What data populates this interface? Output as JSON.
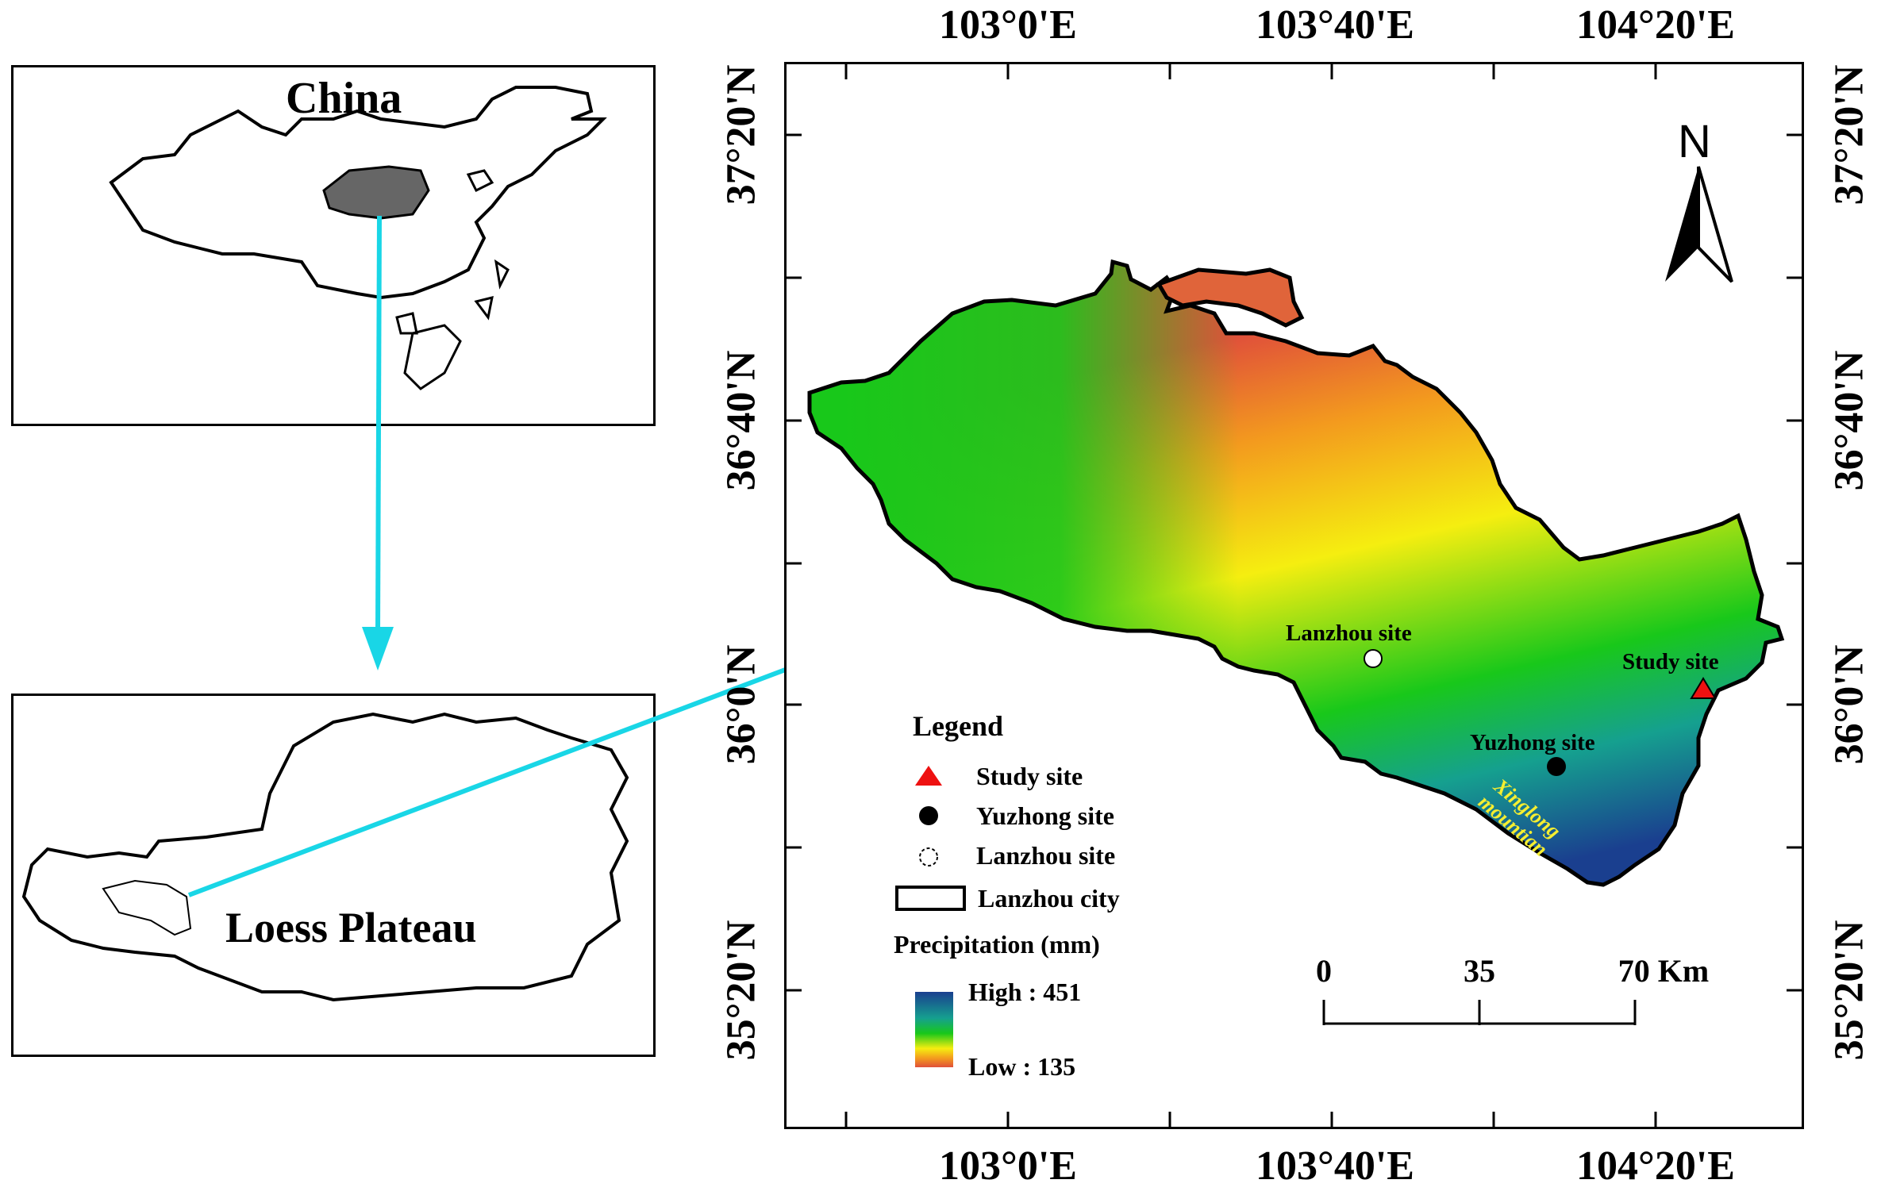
{
  "inset_china": {
    "title": "China"
  },
  "inset_loess": {
    "title": "Loess Plateau"
  },
  "main_map": {
    "lon_labels": [
      "103°0'E",
      "103°40'E",
      "104°20'E"
    ],
    "lat_labels": [
      "37°20'N",
      "36°40'N",
      "36°0'N",
      "35°20'N"
    ],
    "north_arrow": "N",
    "sites": {
      "lanzhou": "Lanzhou site",
      "study": "Study site",
      "yuzhong": "Yuzhong site"
    },
    "mountain_label": "Xinglong mountian"
  },
  "legend": {
    "title": "Legend",
    "items": [
      "Study site",
      "Yuzhong site",
      "Lanzhou site",
      "Lanzhou city"
    ],
    "precip_title": "Precipitation (mm)",
    "high": "High : 451",
    "low": "Low : 135"
  },
  "scale_bar": {
    "labels": [
      "0",
      "35",
      "70 Km"
    ]
  },
  "colors": {
    "arrow": "#19d6e6",
    "study_site": "#ee1111",
    "high": "#1a3f8f",
    "mid": "#18c81a",
    "low_mid": "#f5ee10",
    "low": "#e0503a"
  }
}
